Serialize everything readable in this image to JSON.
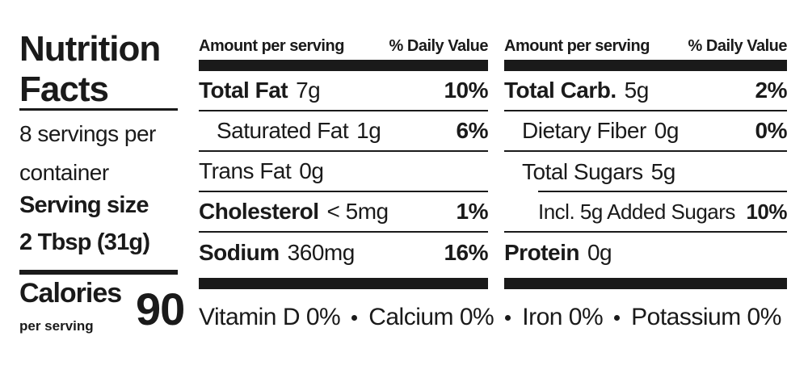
{
  "title": "Nutrition Facts",
  "servings": "8 servings per container",
  "serving_size_label": "Serving size",
  "serving_size": "2 Tbsp (31g)",
  "calories_label": "Calories",
  "calories_note": "per serving",
  "calories": 90,
  "columns": [
    {
      "header_amount": "Amount per serving",
      "header_dv": "% Daily Value",
      "rows": [
        {
          "name": "Total Fat",
          "amount": "7g",
          "dv": "10%"
        },
        {
          "name": "Saturated Fat",
          "amount": "1g",
          "dv": "6%"
        },
        {
          "name": "Trans Fat",
          "amount": "0g"
        },
        {
          "name": "Cholesterol",
          "amount": "< 5mg",
          "dv": "1%"
        },
        {
          "name": "Sodium",
          "amount": "360mg",
          "dv": "16%"
        }
      ]
    },
    {
      "header_amount": "Amount per serving",
      "header_dv": "% Daily Value",
      "rows": [
        {
          "name": "Total Carb.",
          "amount": "5g",
          "dv": "2%"
        },
        {
          "name": "Dietary Fiber",
          "amount": "0g",
          "dv": "0%"
        },
        {
          "name": "Total Sugars",
          "amount": "5g"
        },
        {
          "name": "Incl. 5g Added Sugars",
          "dv": "10%"
        },
        {
          "name": "Protein",
          "amount": "0g"
        }
      ]
    }
  ],
  "vitamins": [
    "Vitamin D 0%",
    "Calcium 0%",
    "Iron 0%",
    "Potassium 0%"
  ]
}
